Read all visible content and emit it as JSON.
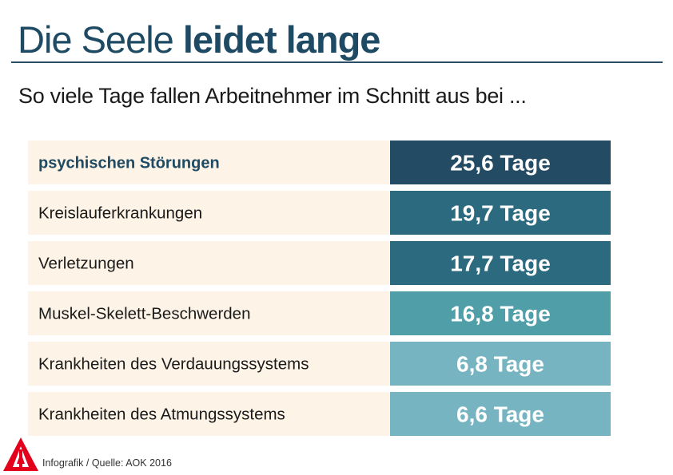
{
  "header": {
    "title_regular": "Die Seele",
    "title_bold": "leidet lange"
  },
  "colors": {
    "title": "#1f4a63",
    "label_background": "#fdf3e6",
    "highlight_label_text": "#1f4a63",
    "value_text": "#ffffff",
    "logo_red": "#e3001b"
  },
  "chart_data": {
    "type": "table",
    "title": "Die Seele leidet lange",
    "subtitle": "So viele Tage fallen Arbeitnehmer im Schnitt aus bei ...",
    "categories": [
      "psychischen Störungen",
      "Kreislauferkrankungen",
      "Verletzungen",
      "Muskel-Skelett-Beschwerden",
      "Krankheiten des Verdauungssystems",
      "Krankheiten des Atmungssystems"
    ],
    "values": [
      25.6,
      19.7,
      17.7,
      16.8,
      6.8,
      6.6
    ],
    "value_labels": [
      "25,6 Tage",
      "19,7 Tage",
      "17,7 Tage",
      "16,8 Tage",
      "6,8 Tage",
      "6,6 Tage"
    ],
    "unit": "Tage",
    "highlighted_category": "psychischen Störungen",
    "value_colors": [
      "#234b63",
      "#2c6a80",
      "#2c6a80",
      "#4f9ea8",
      "#76b4c1",
      "#76b4c1"
    ]
  },
  "footer": {
    "source": "Infografik / Quelle: AOK 2016",
    "logo": "ig-metall-logo"
  }
}
